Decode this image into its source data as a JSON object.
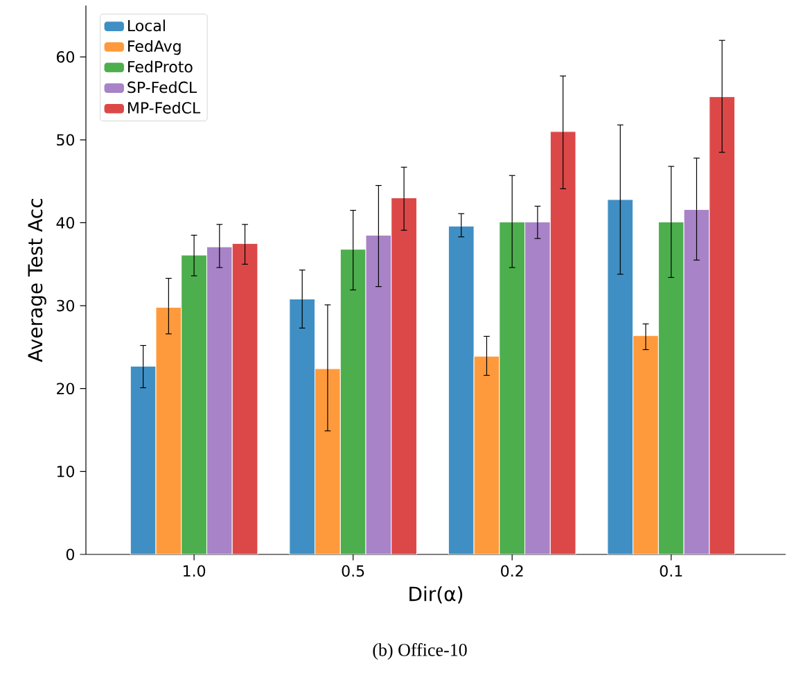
{
  "chart_data": {
    "type": "bar",
    "xlabel": "Dir(α)",
    "ylabel": "Average Test Acc",
    "categories": [
      "1.0",
      "0.5",
      "0.2",
      "0.1"
    ],
    "series": [
      {
        "name": "Local",
        "color": "#3f8fc5",
        "values": [
          22.7,
          30.8,
          39.6,
          42.8
        ],
        "errors": [
          [
            20.1,
            25.2
          ],
          [
            27.3,
            34.3
          ],
          [
            38.3,
            41.1
          ],
          [
            33.8,
            51.8
          ]
        ]
      },
      {
        "name": "FedAvg",
        "color": "#ff9a3c",
        "values": [
          29.8,
          22.4,
          23.9,
          26.4
        ],
        "errors": [
          [
            26.6,
            33.3
          ],
          [
            14.9,
            30.1
          ],
          [
            21.6,
            26.3
          ],
          [
            24.7,
            27.8
          ]
        ]
      },
      {
        "name": "FedProto",
        "color": "#4dae4d",
        "values": [
          36.1,
          36.8,
          40.1,
          40.1
        ],
        "errors": [
          [
            33.6,
            38.5
          ],
          [
            31.9,
            41.5
          ],
          [
            34.6,
            45.7
          ],
          [
            33.4,
            46.8
          ]
        ]
      },
      {
        "name": "SP-FedCL",
        "color": "#a883c8",
        "values": [
          37.1,
          38.5,
          40.1,
          41.6
        ],
        "errors": [
          [
            34.6,
            39.8
          ],
          [
            32.3,
            44.5
          ],
          [
            38.1,
            42.0
          ],
          [
            35.5,
            47.8
          ]
        ]
      },
      {
        "name": "MP-FedCL",
        "color": "#dc4848",
        "values": [
          37.5,
          43.0,
          51.0,
          55.2
        ],
        "errors": [
          [
            35.0,
            39.8
          ],
          [
            39.1,
            46.7
          ],
          [
            44.1,
            57.7
          ],
          [
            48.5,
            62.0
          ]
        ]
      }
    ],
    "ylim": [
      0,
      66.2
    ],
    "yticks": [
      0,
      10,
      20,
      30,
      40,
      50,
      60
    ],
    "grid": false,
    "legend": "top left",
    "annotations": [
      "(b) Office-10"
    ]
  }
}
